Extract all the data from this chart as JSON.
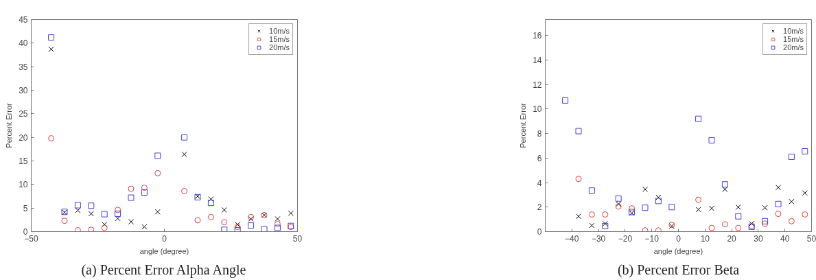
{
  "chart_data": [
    {
      "type": "scatter",
      "title": "(a) Percent Error Alpha Angle",
      "xlabel": "angle (degree)",
      "ylabel": "Percent Error",
      "x": [
        -42.5,
        -37.5,
        -32.5,
        -27.5,
        -22.5,
        -17.5,
        -12.5,
        -7.5,
        -2.5,
        7.5,
        12.5,
        17.5,
        22.5,
        27.5,
        32.5,
        37.5,
        42.5,
        47.5
      ],
      "series": [
        {
          "name": "10m/s",
          "color": "#000000",
          "marker": "cross",
          "values": [
            38.7,
            4.1,
            4.5,
            3.8,
            1.5,
            2.8,
            2.1,
            1.0,
            4.2,
            16.4,
            7.5,
            6.9,
            4.6,
            1.5,
            2.7,
            3.5,
            2.7,
            3.9
          ]
        },
        {
          "name": "15m/s",
          "color": "#e04040",
          "marker": "circle",
          "values": [
            19.8,
            2.3,
            0.3,
            0.4,
            0.8,
            4.6,
            9.1,
            9.3,
            12.4,
            8.6,
            2.4,
            3.1,
            2.0,
            1.0,
            3.1,
            3.5,
            1.6,
            1.0
          ]
        },
        {
          "name": "20m/s",
          "color": "#4040e0",
          "marker": "square",
          "values": [
            41.2,
            4.2,
            5.6,
            5.5,
            3.7,
            3.8,
            7.2,
            8.3,
            16.1,
            20.0,
            7.3,
            6.1,
            0.4,
            0.3,
            1.3,
            0.5,
            0.8,
            1.2
          ]
        }
      ],
      "xlim": [
        -50,
        50
      ],
      "xticks": [
        -50,
        0,
        50
      ],
      "ylim": [
        0,
        45
      ],
      "yticks": [
        0,
        5,
        10,
        15,
        20,
        25,
        30,
        35,
        40,
        45
      ],
      "grid": false,
      "legend": "top right"
    },
    {
      "type": "scatter",
      "title": "(b) Percent Error Beta",
      "xlabel": "angle (degree)",
      "ylabel": "Percent Error",
      "x": [
        -42.5,
        -37.5,
        -32.5,
        -27.5,
        -22.5,
        -17.5,
        -12.5,
        -7.5,
        -2.5,
        7.5,
        12.5,
        17.5,
        22.5,
        27.5,
        32.5,
        37.5,
        42.5,
        47.5
      ],
      "series": [
        {
          "name": "10m/s",
          "color": "#000000",
          "marker": "cross",
          "values": [
            null,
            1.25,
            0.5,
            0.65,
            2.25,
            1.5,
            3.45,
            2.8,
            0.45,
            1.8,
            1.9,
            3.45,
            2.0,
            0.65,
            1.95,
            3.6,
            2.45,
            3.15
          ]
        },
        {
          "name": "15m/s",
          "color": "#e04040",
          "marker": "circle",
          "values": [
            null,
            4.3,
            1.4,
            1.4,
            2.05,
            1.9,
            0.1,
            0.1,
            0.55,
            2.6,
            0.3,
            0.6,
            0.3,
            0.45,
            0.65,
            1.45,
            0.85,
            1.4
          ]
        },
        {
          "name": "20m/s",
          "color": "#4040e0",
          "marker": "square",
          "values": [
            10.7,
            8.2,
            3.35,
            0.45,
            2.7,
            1.6,
            1.95,
            2.5,
            2.0,
            9.2,
            7.45,
            3.85,
            1.25,
            0.4,
            0.85,
            2.25,
            6.1,
            6.55
          ]
        }
      ],
      "xlim": [
        -50,
        50
      ],
      "xticks": [
        {
          "value": -50,
          "label": null
        },
        -40,
        -30,
        -20,
        -10,
        0,
        10,
        20,
        30,
        40,
        50
      ],
      "ylim": [
        0,
        17.3
      ],
      "yticks": [
        0,
        2,
        4,
        6,
        8,
        10,
        12,
        14,
        16
      ],
      "grid": false,
      "legend": "top right"
    }
  ]
}
